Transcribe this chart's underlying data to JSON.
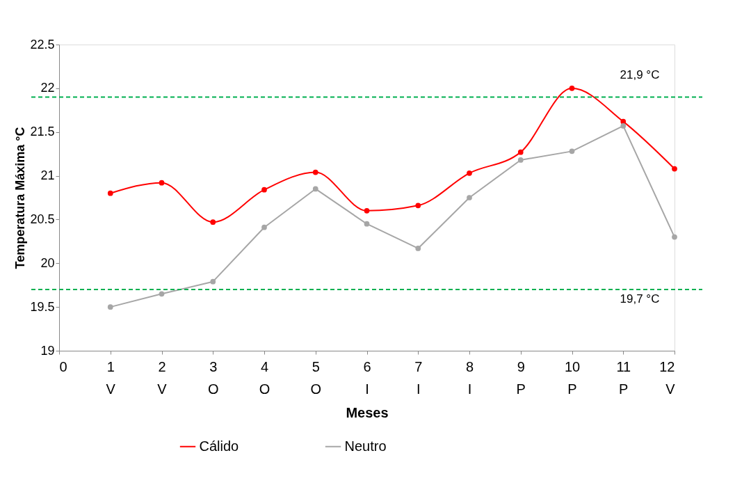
{
  "chart_data": {
    "type": "line",
    "xlabel": "Meses",
    "ylabel": "Temperatura Máxima °C",
    "x": [
      1,
      2,
      3,
      4,
      5,
      6,
      7,
      8,
      9,
      10,
      11,
      12
    ],
    "series": [
      {
        "name": "Cálido",
        "color": "#ff0000",
        "values": [
          20.8,
          20.92,
          20.47,
          20.84,
          21.04,
          20.6,
          20.66,
          21.03,
          21.27,
          22.0,
          21.62,
          21.08
        ]
      },
      {
        "name": "Neutro",
        "color": "#a6a6a6",
        "values": [
          19.5,
          19.65,
          19.79,
          20.41,
          20.85,
          20.45,
          20.17,
          20.75,
          21.18,
          21.28,
          21.57,
          20.3
        ]
      }
    ],
    "xlim": [
      0,
      12
    ],
    "xticks": [
      0,
      {
        "value": 1,
        "label": "1\nV"
      },
      {
        "value": 2,
        "label": "2\nV"
      },
      {
        "value": 3,
        "label": "3\nO"
      },
      {
        "value": 4,
        "label": "4\nO"
      },
      {
        "value": 5,
        "label": "5\nO"
      },
      {
        "value": 6,
        "label": "6\nI"
      },
      {
        "value": 7,
        "label": "7\nI"
      },
      {
        "value": 8,
        "label": "8\nI"
      },
      {
        "value": 9,
        "label": "9\nP"
      },
      {
        "value": 10,
        "label": "10\nP"
      },
      {
        "value": 11,
        "label": "11\nP"
      },
      {
        "value": 12,
        "label": "12\nV"
      }
    ],
    "ylim": [
      19,
      22.5
    ],
    "yticks": [
      19,
      19.5,
      20,
      20.5,
      21,
      21.5,
      22,
      22.5
    ],
    "ref_lines": [
      {
        "axis": "y",
        "value": 21.9,
        "label": "21,9 °C",
        "color": "#00b050",
        "line_style": "dashed"
      },
      {
        "axis": "y",
        "value": 19.7,
        "label": "19,7 °C",
        "color": "#00b050",
        "line_style": "dashed"
      }
    ],
    "grid": false,
    "legend": "bottom",
    "marker": "circle",
    "line_style": "solid"
  }
}
